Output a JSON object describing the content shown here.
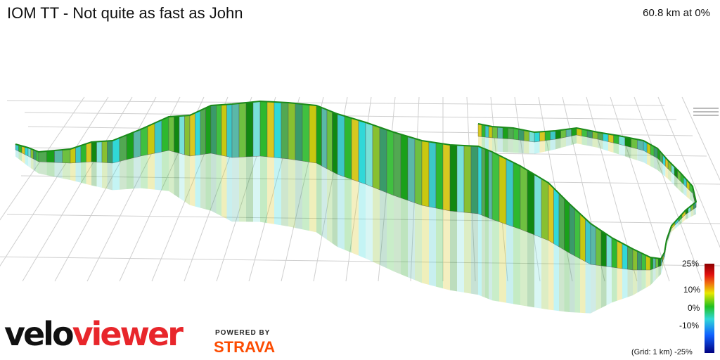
{
  "header": {
    "title": "IOM TT - Not quite as fast as John",
    "summary": "60.8 km at 0%"
  },
  "legend": {
    "labels": [
      "25%",
      "10%",
      "0%",
      "-10%",
      "-25%"
    ],
    "grid_note": "(Grid: 1 km)"
  },
  "branding": {
    "logo_part1": "velo",
    "logo_part2": "viewer",
    "powered_by": "POWERED BY",
    "strava": "STRAVA"
  },
  "colors": {
    "gradient_steep_up": "#8b0000",
    "gradient_up": "#e8e800",
    "gradient_flat": "#20c020",
    "gradient_down": "#30d8d8",
    "gradient_steep_down": "#000080",
    "logo_accent": "#e8262b",
    "strava_orange": "#fc4c02"
  }
}
